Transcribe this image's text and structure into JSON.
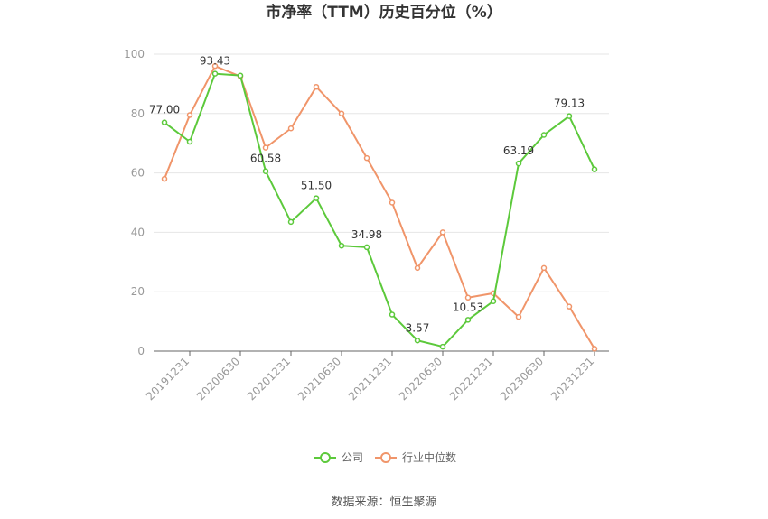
{
  "chart_data": {
    "type": "line",
    "title": "市净率（TTM）历史百分位（%）",
    "xlabel": "",
    "ylabel": "",
    "ylim": [
      0,
      100
    ],
    "yticks": [
      "0",
      "20",
      "40",
      "60",
      "80",
      "100"
    ],
    "x": [
      "20191231",
      "20200331",
      "20200630",
      "20200930",
      "20201231",
      "20210331",
      "20210630",
      "20210930",
      "20211231",
      "20220331",
      "20220630",
      "20220930",
      "20221231",
      "20230331",
      "20230630",
      "20230930",
      "20231231",
      "20240331"
    ],
    "xtick_labels": [
      "20191231",
      "20200630",
      "20201231",
      "20210630",
      "20211231",
      "20220630",
      "20221231",
      "20230630",
      "20231231"
    ],
    "series": [
      {
        "name": "公司",
        "color": "#5cc93b",
        "values": [
          77.0,
          70.5,
          93.43,
          92.8,
          60.58,
          43.5,
          51.5,
          35.5,
          34.98,
          12.3,
          3.57,
          1.5,
          10.53,
          16.8,
          63.19,
          72.8,
          79.13,
          61.2
        ],
        "labels": [
          "77.00",
          null,
          "93.43",
          null,
          "60.58",
          null,
          "51.50",
          null,
          "34.98",
          null,
          "3.57",
          null,
          "10.53",
          null,
          "63.19",
          null,
          "79.13",
          null
        ]
      },
      {
        "name": "行业中位数",
        "color": "#f0956a",
        "values": [
          58.0,
          79.5,
          96.0,
          92.5,
          68.5,
          75.0,
          89.0,
          80.0,
          65.0,
          50.0,
          28.0,
          40.0,
          18.0,
          19.5,
          11.5,
          28.0,
          15.0,
          0.8
        ]
      }
    ],
    "legend_position": "bottom-center",
    "grid": true
  },
  "source": "数据来源：恒生聚源"
}
